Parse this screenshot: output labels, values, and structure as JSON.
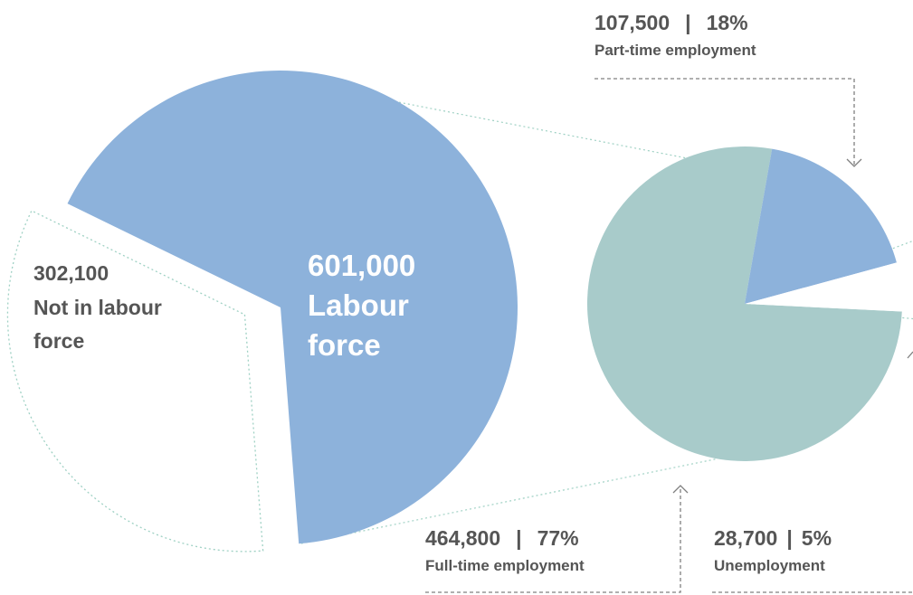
{
  "chart_data": [
    {
      "type": "pie",
      "slices": [
        {
          "value_label": "601,000",
          "name": "Labour force",
          "name_lines": [
            "Labour",
            "force"
          ],
          "value": 601000
        },
        {
          "value_label": "302,100",
          "name": "Not in labour force",
          "name_lines": [
            "Not in labour",
            "force"
          ],
          "value": 302100
        }
      ],
      "colors": {
        "labour_force": "#8db2db",
        "not_in_labour_force": "#ffffff",
        "outline": "#9fd1c4"
      }
    },
    {
      "type": "pie",
      "slices": [
        {
          "value_label": "107,500",
          "percent_label": "18%",
          "name": "Part-time employment",
          "value": 107500,
          "percent": 18
        },
        {
          "value_label": "464,800",
          "percent_label": "77%",
          "name": "Full-time employment",
          "value": 464800,
          "percent": 77
        },
        {
          "value_label": "28,700",
          "percent_label": "5%",
          "name": "Unemployment",
          "value": 28700,
          "percent": 5
        }
      ],
      "colors": {
        "part_time": "#8db2db",
        "full_time": "#a8cbca",
        "unemployment": "#ffffff"
      }
    }
  ],
  "separator": "|"
}
